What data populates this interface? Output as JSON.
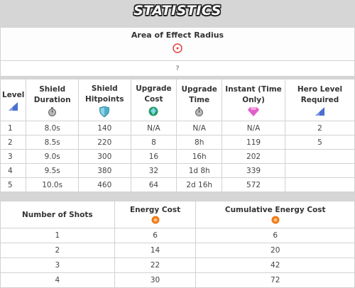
{
  "page_title": "STATISTICS",
  "aoe": {
    "header": "Area of Effect Radius",
    "value": "?"
  },
  "level_table": {
    "headers": {
      "level": "Level",
      "shield_duration": "Shield Duration",
      "shield_hitpoints": "Shield Hitpoints",
      "upgrade_cost": "Upgrade Cost",
      "upgrade_time": "Upgrade Time",
      "instant": "Instant (Time Only)",
      "hero_level": "Hero Level Required"
    },
    "rows": [
      [
        "1",
        "8.0s",
        "140",
        "N/A",
        "N/A",
        "N/A",
        "2"
      ],
      [
        "2",
        "8.5s",
        "220",
        "8",
        "8h",
        "119",
        "5"
      ],
      [
        "3",
        "9.0s",
        "300",
        "16",
        "16h",
        "202",
        ""
      ],
      [
        "4",
        "9.5s",
        "380",
        "32",
        "1d 8h",
        "339",
        ""
      ],
      [
        "5",
        "10.0s",
        "460",
        "64",
        "2d 16h",
        "572",
        ""
      ]
    ]
  },
  "shots_table": {
    "headers": {
      "shots": "Number of Shots",
      "energy": "Energy Cost",
      "cumulative": "Cumulative Energy Cost"
    },
    "rows": [
      [
        "1",
        "6",
        "6"
      ],
      [
        "2",
        "14",
        "20"
      ],
      [
        "3",
        "22",
        "42"
      ],
      [
        "4",
        "30",
        "72"
      ]
    ]
  },
  "icons": {
    "aoe": "target-icon",
    "level": "level-bars-icon",
    "duration": "stopwatch-icon",
    "hitpoints": "shield-icon",
    "upgrade_cost": "globe-gem-icon",
    "upgrade_time": "stopwatch-icon",
    "instant": "gem-icon",
    "hero_level": "level-bars-icon",
    "energy": "energy-orb-icon"
  },
  "colors": {
    "title_text": "#ffffff",
    "page_bg": "#d6d6d6",
    "target": "#e04040",
    "shield": "#4fb0c8",
    "gem": "#e060c8",
    "bars": "#4a6fd0",
    "energy": "#f07a1a"
  }
}
